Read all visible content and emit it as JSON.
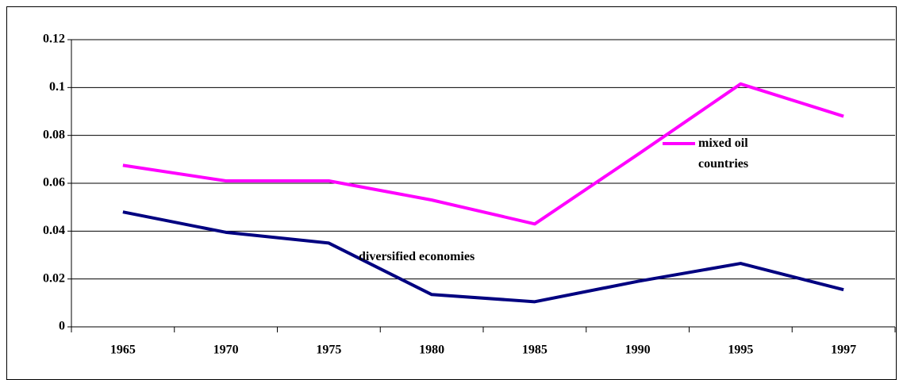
{
  "chart_data": {
    "type": "line",
    "categories": [
      "1965",
      "1970",
      "1975",
      "1980",
      "1985",
      "1990",
      "1995",
      "1997"
    ],
    "series": [
      {
        "name": "mixed oil countries",
        "color": "#ff00ff",
        "values": [
          0.0675,
          0.061,
          0.061,
          0.053,
          0.043,
          0.072,
          0.1015,
          0.088
        ]
      },
      {
        "name": "diversified economies",
        "color": "#000080",
        "values": [
          0.048,
          0.0395,
          0.035,
          0.0135,
          0.0105,
          0.019,
          0.0265,
          0.0155
        ]
      }
    ],
    "ylim": [
      0,
      0.12
    ],
    "yticks": [
      0,
      0.02,
      0.04,
      0.06,
      0.08,
      0.1,
      0.12
    ],
    "grid": true
  }
}
